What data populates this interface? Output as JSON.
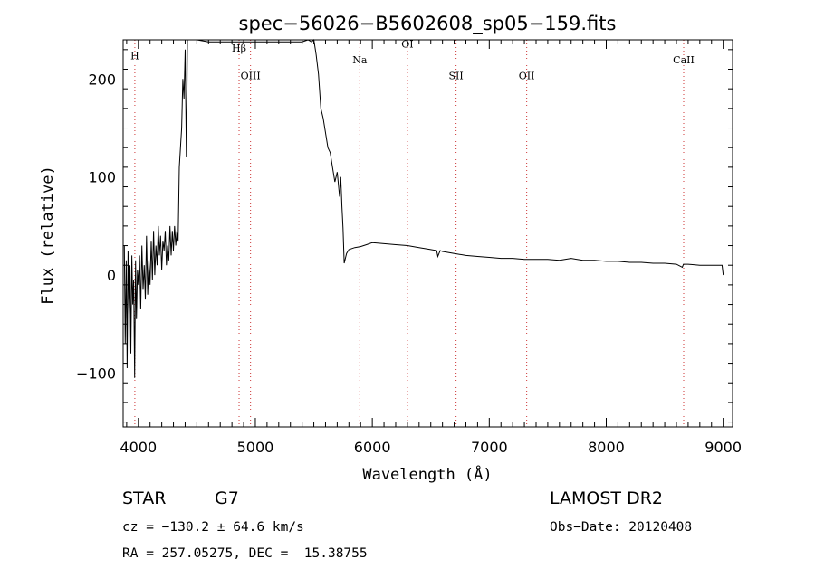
{
  "chart_data": {
    "type": "line",
    "title": "spec−56026−B5602608_sp05−159.fits",
    "xlabel": "Wavelength (Å)",
    "ylabel": "Flux (relative)",
    "xlim": [
      3870,
      9080
    ],
    "ylim": [
      -155,
      240
    ],
    "xticks": [
      {
        "value": 4000,
        "label": "4000"
      },
      {
        "value": 5000,
        "label": "5000"
      },
      {
        "value": 6000,
        "label": "6000"
      },
      {
        "value": 7000,
        "label": "7000"
      },
      {
        "value": 8000,
        "label": "8000"
      },
      {
        "value": 9000,
        "label": "9000"
      }
    ],
    "yticks": [
      {
        "value": -100,
        "label": "−100"
      },
      {
        "value": 0,
        "label": "0"
      },
      {
        "value": 100,
        "label": "100"
      },
      {
        "value": 200,
        "label": "200"
      }
    ],
    "line_color": "#000000",
    "marker_color": "#cc3333",
    "spectral_lines": [
      {
        "label": "H",
        "wavelength": 3970,
        "label_y": 220
      },
      {
        "label": "Hβ",
        "wavelength": 4861,
        "label_y": 228
      },
      {
        "label": "OIII",
        "wavelength": 4959,
        "label_y": 200
      },
      {
        "label": "Na",
        "wavelength": 5893,
        "label_y": 216
      },
      {
        "label": "OI",
        "wavelength": 6300,
        "label_y": 232
      },
      {
        "label": "SII",
        "wavelength": 6716,
        "label_y": 200
      },
      {
        "label": "OII",
        "wavelength": 7320,
        "label_y": 200
      },
      {
        "label": "CaII",
        "wavelength": 8662,
        "label_y": 216
      }
    ],
    "series": [
      {
        "x": [
          3880,
          3888,
          3896,
          3904,
          3912,
          3920,
          3928,
          3936,
          3944,
          3952,
          3960,
          3968,
          3976,
          3984,
          3992,
          4000,
          4010,
          4020,
          4030,
          4040,
          4050,
          4060,
          4070,
          4080,
          4090,
          4100,
          4110,
          4120,
          4130,
          4140,
          4150,
          4160,
          4170,
          4180,
          4190,
          4200,
          4210,
          4220,
          4230,
          4240,
          4250,
          4260,
          4270,
          4280,
          4290,
          4300,
          4310,
          4320,
          4330,
          4340,
          4350,
          4360,
          4370,
          4380,
          4390,
          4400,
          4410,
          4420,
          4500,
          4600,
          4700,
          4800,
          4900,
          5000,
          5100,
          5200,
          5300,
          5400,
          5450,
          5480,
          5500,
          5520,
          5540,
          5560,
          5580,
          5600,
          5620,
          5640,
          5660,
          5680,
          5700,
          5720,
          5730,
          5740,
          5750,
          5760,
          5780,
          5800,
          5850,
          5900,
          5950,
          6000,
          6100,
          6200,
          6300,
          6400,
          6500,
          6550,
          6560,
          6580,
          6600,
          6700,
          6800,
          6900,
          7000,
          7100,
          7200,
          7300,
          7400,
          7500,
          7600,
          7700,
          7800,
          7900,
          8000,
          8100,
          8200,
          8300,
          8400,
          8500,
          8600,
          8650,
          8660,
          8700,
          8800,
          8900,
          8990,
          9000
        ],
        "y": [
          30,
          -70,
          15,
          -95,
          25,
          -40,
          10,
          -80,
          20,
          -30,
          -5,
          -105,
          15,
          -45,
          5,
          -10,
          20,
          -35,
          30,
          -15,
          10,
          -25,
          40,
          -20,
          15,
          -10,
          35,
          -5,
          45,
          0,
          30,
          10,
          50,
          20,
          40,
          5,
          35,
          25,
          45,
          10,
          30,
          15,
          50,
          20,
          45,
          25,
          50,
          30,
          45,
          35,
          110,
          130,
          150,
          200,
          180,
          230,
          120,
          240,
          240,
          238,
          238,
          238,
          238,
          238,
          238,
          238,
          238,
          238,
          240,
          238,
          245,
          225,
          205,
          170,
          160,
          145,
          130,
          125,
          110,
          95,
          105,
          80,
          100,
          70,
          48,
          12,
          22,
          26,
          28,
          29,
          31,
          33,
          32,
          31,
          30,
          28,
          26,
          25,
          19,
          25,
          24,
          22,
          20,
          19,
          18,
          17,
          17,
          16,
          16,
          16,
          15,
          17,
          15,
          15,
          14,
          14,
          13,
          13,
          12,
          12,
          11,
          8,
          11,
          11,
          10,
          10,
          10,
          0
        ]
      }
    ]
  },
  "info": {
    "class_label": "STAR",
    "subclass": "G7",
    "survey": "LAMOST DR2",
    "cz": "cz = −130.2 ± 64.6 km/s",
    "obs_date": "Obs−Date: 20120408",
    "coords": "RA = 257.05275, DEC =  15.38755"
  }
}
